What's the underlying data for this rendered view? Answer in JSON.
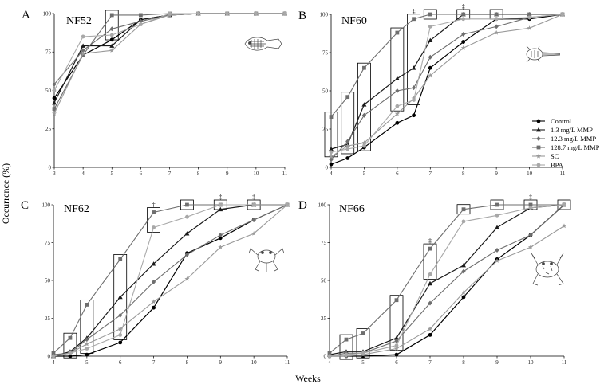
{
  "figure": {
    "xlabel": "Weeks",
    "ylabel": "Occurrence (%)"
  },
  "colors": {
    "Control": "#000000",
    "1.3 mg/L MMP": "#1a1a1a",
    "12.3 mg/L MMP": "#6e6e6e",
    "128.7 mg/L MMP": "#6e6e6e",
    "SC": "#9a9a9a",
    "BPA": "#a8a8a8"
  },
  "legend": {
    "entries": [
      {
        "name": "Control",
        "marker": "circle"
      },
      {
        "name": "1.3 mg/L MMP",
        "marker": "triangle"
      },
      {
        "name": "12.3 mg/L MMP",
        "marker": "diamond"
      },
      {
        "name": "128.7 mg/L MMP",
        "marker": "square"
      },
      {
        "name": "SC",
        "marker": "star"
      },
      {
        "name": "BPA",
        "marker": "circle"
      }
    ]
  },
  "chart_data": [
    {
      "type": "line",
      "panel": "A",
      "stage": "NF52",
      "xlim": [
        3,
        11
      ],
      "ylim": [
        0,
        100
      ],
      "xticks": [
        "3",
        "4",
        "5",
        "6",
        "7",
        "8",
        "9",
        "10",
        "11"
      ],
      "yticks": [
        "0",
        "25",
        "50",
        "75",
        "100"
      ],
      "series": [
        {
          "name": "Control",
          "x": [
            3,
            4,
            5,
            6,
            7,
            8,
            9,
            10,
            11
          ],
          "y": [
            45,
            73,
            83,
            96,
            99,
            100,
            100,
            100,
            100
          ]
        },
        {
          "name": "1.3 mg/L MMP",
          "x": [
            3,
            4,
            5,
            6,
            7,
            8,
            9,
            10,
            11
          ],
          "y": [
            42,
            79,
            79,
            96,
            99,
            100,
            100,
            100,
            100
          ]
        },
        {
          "name": "12.3 mg/L MMP",
          "x": [
            3,
            4,
            5,
            6,
            7,
            8,
            9,
            10,
            11
          ],
          "y": [
            54,
            76,
            90,
            95,
            99,
            100,
            100,
            100,
            100
          ]
        },
        {
          "name": "128.7 mg/L MMP",
          "x": [
            3,
            4,
            5,
            6,
            7,
            8,
            9,
            10,
            11
          ],
          "y": [
            38,
            73,
            99,
            99,
            100,
            100,
            100,
            100,
            100
          ]
        },
        {
          "name": "SC",
          "x": [
            3,
            4,
            5,
            6,
            7,
            8,
            9,
            10,
            11
          ],
          "y": [
            35,
            74,
            76,
            93,
            99,
            100,
            100,
            100,
            100
          ]
        },
        {
          "name": "BPA",
          "x": [
            3,
            4,
            5,
            6,
            7,
            8,
            9,
            10,
            11
          ],
          "y": [
            50,
            85,
            86,
            93,
            100,
            100,
            100,
            100,
            100
          ]
        }
      ],
      "boxes": [
        5
      ],
      "daggers": []
    },
    {
      "type": "line",
      "panel": "B",
      "stage": "NF60",
      "xlim": [
        4,
        11
      ],
      "ylim": [
        0,
        100
      ],
      "xticks": [
        "4",
        "5",
        "6",
        "7",
        "8",
        "9",
        "10",
        "11"
      ],
      "yticks": [
        "0",
        "25",
        "50",
        "75",
        "100"
      ],
      "series": [
        {
          "name": "Control",
          "x": [
            4,
            4.5,
            5,
            6,
            6.5,
            7,
            8,
            9,
            10,
            11
          ],
          "y": [
            2,
            6,
            13,
            29,
            34,
            65,
            82,
            97,
            97,
            100
          ]
        },
        {
          "name": "1.3 mg/L MMP",
          "x": [
            4,
            4.5,
            5,
            6,
            6.5,
            7,
            8,
            9,
            10,
            11
          ],
          "y": [
            12,
            15,
            41,
            58,
            65,
            83,
            100,
            100,
            100,
            100
          ]
        },
        {
          "name": "12.3 mg/L MMP",
          "x": [
            4,
            4.5,
            5,
            6,
            6.5,
            7,
            8,
            9,
            10,
            11
          ],
          "y": [
            5,
            17,
            34,
            50,
            52,
            72,
            87,
            92,
            98,
            100
          ]
        },
        {
          "name": "128.7 mg/L MMP",
          "x": [
            4,
            4.5,
            5,
            6,
            6.5,
            7,
            8,
            9,
            10,
            11
          ],
          "y": [
            33,
            46,
            65,
            88,
            97,
            100,
            100,
            100,
            100,
            100
          ]
        },
        {
          "name": "SC",
          "x": [
            4,
            4.5,
            5,
            6,
            6.5,
            7,
            8,
            9,
            10,
            11
          ],
          "y": [
            7,
            14,
            16,
            35,
            45,
            60,
            78,
            88,
            91,
            100
          ]
        },
        {
          "name": "BPA",
          "x": [
            4,
            4.5,
            5,
            6,
            6.5,
            7,
            8,
            9,
            10,
            11
          ],
          "y": [
            10,
            12,
            14,
            40,
            44,
            92,
            97,
            97,
            98,
            100
          ]
        }
      ],
      "boxes": [
        4,
        4.5,
        5,
        6,
        6.5,
        7,
        8,
        9
      ],
      "daggers": [
        6.5,
        8
      ]
    },
    {
      "type": "line",
      "panel": "C",
      "stage": "NF62",
      "xlim": [
        4,
        11
      ],
      "ylim": [
        0,
        100
      ],
      "xticks": [
        "4",
        "5",
        "6",
        "7",
        "8",
        "9",
        "10",
        "11"
      ],
      "yticks": [
        "0",
        "25",
        "50",
        "75",
        "100"
      ],
      "series": [
        {
          "name": "Control",
          "x": [
            4,
            4.5,
            5,
            6,
            7,
            8,
            9,
            10,
            11
          ],
          "y": [
            0,
            0,
            1,
            9,
            32,
            68,
            78,
            90,
            100
          ]
        },
        {
          "name": "1.3 mg/L MMP",
          "x": [
            4,
            4.5,
            5,
            6,
            7,
            8,
            9,
            10,
            11
          ],
          "y": [
            0,
            3,
            12,
            39,
            61,
            81,
            97,
            100,
            100
          ]
        },
        {
          "name": "12.3 mg/L MMP",
          "x": [
            4,
            4.5,
            5,
            6,
            7,
            8,
            9,
            10,
            11
          ],
          "y": [
            1,
            2,
            11,
            27,
            49,
            67,
            80,
            90,
            100
          ]
        },
        {
          "name": "128.7 mg/L MMP",
          "x": [
            4,
            4.5,
            5,
            6,
            7,
            8,
            9,
            10,
            11
          ],
          "y": [
            2,
            12,
            34,
            64,
            95,
            100,
            100,
            100,
            100
          ]
        },
        {
          "name": "SC",
          "x": [
            4,
            4.5,
            5,
            6,
            7,
            8,
            9,
            10,
            11
          ],
          "y": [
            0,
            2,
            8,
            18,
            36,
            51,
            72,
            81,
            100
          ]
        },
        {
          "name": "BPA",
          "x": [
            4,
            4.5,
            5,
            6,
            7,
            8,
            9,
            10,
            11
          ],
          "y": [
            0,
            2,
            5,
            14,
            85,
            92,
            100,
            100,
            100
          ]
        }
      ],
      "boxes": [
        4.5,
        5,
        6,
        7,
        8,
        9,
        10
      ],
      "daggers": [
        7,
        9,
        10
      ]
    },
    {
      "type": "line",
      "panel": "D",
      "stage": "NF66",
      "xlim": [
        4,
        11
      ],
      "ylim": [
        0,
        100
      ],
      "xticks": [
        "4",
        "5",
        "6",
        "7",
        "8",
        "9",
        "10",
        "11"
      ],
      "yticks": [
        "0",
        "25",
        "50",
        "75",
        "100"
      ],
      "series": [
        {
          "name": "Control",
          "x": [
            4,
            4.5,
            5,
            6,
            7,
            8,
            9,
            10,
            11
          ],
          "y": [
            0,
            0,
            0,
            1,
            14,
            39,
            64,
            80,
            100
          ]
        },
        {
          "name": "1.3 mg/L MMP",
          "x": [
            4,
            4.5,
            5,
            6,
            7,
            8,
            9,
            10,
            11
          ],
          "y": [
            1,
            3,
            3,
            12,
            48,
            60,
            85,
            98,
            100
          ]
        },
        {
          "name": "12.3 mg/L MMP",
          "x": [
            4,
            4.5,
            5,
            6,
            7,
            8,
            9,
            10,
            11
          ],
          "y": [
            0,
            2,
            2,
            10,
            35,
            56,
            70,
            80,
            100
          ]
        },
        {
          "name": "128.7 mg/L MMP",
          "x": [
            4,
            4.5,
            5,
            6,
            7,
            8,
            9,
            10,
            11
          ],
          "y": [
            2,
            11,
            15,
            37,
            71,
            97,
            100,
            100,
            100
          ]
        },
        {
          "name": "SC",
          "x": [
            4,
            4.5,
            5,
            6,
            7,
            8,
            9,
            10,
            11
          ],
          "y": [
            0,
            0,
            1,
            5,
            18,
            42,
            63,
            72,
            86
          ]
        },
        {
          "name": "BPA",
          "x": [
            4,
            4.5,
            5,
            6,
            7,
            8,
            9,
            10,
            11
          ],
          "y": [
            0,
            1,
            2,
            7,
            54,
            89,
            93,
            98,
            100
          ]
        }
      ],
      "boxes": [
        4.5,
        5,
        6,
        7,
        8,
        9,
        10,
        11
      ],
      "daggers": [
        7,
        10
      ]
    }
  ]
}
